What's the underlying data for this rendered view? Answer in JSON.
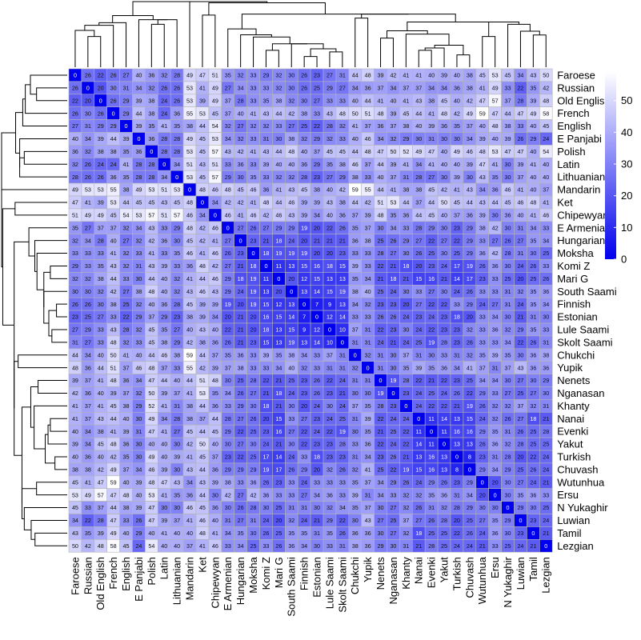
{
  "chart_data": {
    "type": "heatmap",
    "title": "",
    "xlabel": "",
    "ylabel": "",
    "labels": [
      "Faroese",
      "Russian",
      "Old English",
      "French",
      "English",
      "E Panjabi",
      "Polish",
      "Latin",
      "Lithuanian",
      "Mandarin",
      "Ket",
      "Chipewyan",
      "E Armenian",
      "Hungarian",
      "Moksha",
      "Komi Z",
      "Mari G",
      "South Saami",
      "Finnish",
      "Estonian",
      "Lule Saami",
      "Skolt Saami",
      "Chukchi",
      "Yupik",
      "Nenets",
      "Nganasan",
      "Khanty",
      "Nanai",
      "Evenki",
      "Yakut",
      "Turkish",
      "Chuvash",
      "Wutunhua",
      "Ersu",
      "N Yukaghir",
      "Luwian",
      "Tamil",
      "Lezgian"
    ],
    "matrix": [
      [
        0,
        26,
        22,
        26,
        27,
        40,
        36,
        32,
        28,
        49,
        47,
        51,
        35,
        32,
        33,
        29,
        32,
        30,
        26,
        23,
        27,
        31,
        44,
        48,
        39,
        42,
        41,
        41,
        40,
        39,
        40,
        38,
        45,
        53,
        45,
        34,
        43,
        50
      ],
      [
        26,
        0,
        20,
        30,
        31,
        34,
        32,
        26,
        26,
        53,
        41,
        49,
        27,
        34,
        33,
        33,
        32,
        30,
        26,
        25,
        29,
        27,
        34,
        36,
        37,
        34,
        37,
        37,
        34,
        34,
        36,
        38,
        41,
        49,
        33,
        22,
        35,
        42
      ],
      [
        22,
        20,
        0,
        26,
        29,
        39,
        38,
        24,
        26,
        53,
        39,
        49,
        37,
        28,
        33,
        35,
        38,
        32,
        30,
        27,
        33,
        33,
        40,
        44,
        41,
        40,
        41,
        43,
        38,
        45,
        40,
        42,
        47,
        57,
        37,
        28,
        39,
        48
      ],
      [
        26,
        30,
        26,
        0,
        29,
        44,
        38,
        24,
        36,
        55,
        53,
        45,
        37,
        40,
        41,
        43,
        44,
        42,
        38,
        33,
        43,
        48,
        50,
        51,
        48,
        39,
        45,
        44,
        41,
        48,
        42,
        49,
        59,
        47,
        44,
        47,
        49,
        58
      ],
      [
        27,
        31,
        29,
        29,
        0,
        39,
        35,
        41,
        35,
        38,
        44,
        54,
        32,
        27,
        32,
        32,
        33,
        27,
        25,
        22,
        28,
        32,
        41,
        37,
        36,
        37,
        38,
        40,
        39,
        36,
        35,
        37,
        40,
        48,
        38,
        33,
        40,
        45
      ],
      [
        40,
        34,
        39,
        44,
        39,
        0,
        36,
        28,
        28,
        49,
        45,
        53,
        34,
        32,
        33,
        31,
        30,
        38,
        32,
        29,
        32,
        33,
        40,
        46,
        34,
        32,
        29,
        30,
        31,
        30,
        30,
        34,
        39,
        40,
        39,
        26,
        29,
        24
      ],
      [
        36,
        32,
        38,
        38,
        35,
        36,
        0,
        28,
        28,
        53,
        45,
        57,
        43,
        42,
        41,
        43,
        44,
        48,
        40,
        37,
        45,
        45,
        44,
        48,
        47,
        50,
        52,
        49,
        47,
        40,
        49,
        46,
        48,
        53,
        47,
        47,
        40,
        54
      ],
      [
        32,
        26,
        24,
        24,
        41,
        28,
        28,
        0,
        34,
        51,
        43,
        51,
        33,
        36,
        33,
        39,
        40,
        40,
        36,
        29,
        35,
        38,
        46,
        37,
        44,
        39,
        41,
        34,
        41,
        40,
        40,
        39,
        47,
        41,
        30,
        39,
        41,
        40
      ],
      [
        28,
        26,
        26,
        36,
        35,
        28,
        28,
        34,
        0,
        53,
        45,
        57,
        29,
        30,
        35,
        33,
        32,
        32,
        28,
        23,
        27,
        29,
        38,
        33,
        40,
        37,
        31,
        28,
        27,
        30,
        39,
        30,
        43,
        35,
        30,
        37,
        40,
        40
      ],
      [
        49,
        53,
        53,
        55,
        38,
        49,
        53,
        51,
        53,
        0,
        48,
        46,
        48,
        45,
        46,
        36,
        41,
        43,
        45,
        38,
        40,
        42,
        59,
        55,
        44,
        41,
        38,
        38,
        45,
        42,
        41,
        43,
        34,
        36,
        46,
        41,
        40,
        37
      ],
      [
        47,
        41,
        39,
        53,
        44,
        45,
        45,
        43,
        45,
        48,
        0,
        34,
        42,
        42,
        41,
        48,
        44,
        46,
        39,
        39,
        43,
        38,
        44,
        42,
        51,
        53,
        44,
        37,
        44,
        50,
        45,
        44,
        43,
        44,
        45,
        46,
        48,
        41
      ],
      [
        51,
        49,
        49,
        45,
        54,
        53,
        57,
        51,
        57,
        46,
        34,
        0,
        46,
        41,
        46,
        42,
        46,
        43,
        39,
        34,
        40,
        36,
        37,
        39,
        48,
        35,
        36,
        44,
        45,
        40,
        37,
        36,
        39,
        30,
        36,
        40,
        41,
        46
      ],
      [
        35,
        27,
        37,
        37,
        32,
        34,
        43,
        33,
        29,
        48,
        42,
        46,
        0,
        27,
        26,
        27,
        29,
        29,
        19,
        20,
        22,
        26,
        35,
        37,
        30,
        34,
        33,
        28,
        29,
        30,
        23,
        29,
        38,
        42,
        30,
        31,
        34,
        33
      ],
      [
        32,
        34,
        28,
        40,
        27,
        32,
        42,
        36,
        30,
        45,
        42,
        41,
        27,
        0,
        23,
        21,
        18,
        24,
        20,
        21,
        21,
        21,
        36,
        38,
        25,
        26,
        29,
        27,
        22,
        27,
        22,
        29,
        33,
        27,
        26,
        27,
        35,
        34
      ],
      [
        33,
        33,
        33,
        41,
        32,
        33,
        41,
        33,
        35,
        46,
        41,
        46,
        26,
        23,
        0,
        18,
        19,
        19,
        19,
        20,
        20,
        23,
        33,
        33,
        28,
        27,
        30,
        26,
        25,
        30,
        25,
        29,
        36,
        42,
        28,
        31,
        30,
        25
      ],
      [
        29,
        33,
        35,
        43,
        32,
        31,
        43,
        39,
        33,
        36,
        48,
        42,
        27,
        21,
        18,
        0,
        11,
        13,
        15,
        16,
        18,
        15,
        39,
        33,
        22,
        21,
        18,
        20,
        23,
        24,
        17,
        19,
        26,
        36,
        30,
        24,
        26,
        33
      ],
      [
        32,
        32,
        38,
        44,
        33,
        30,
        44,
        40,
        32,
        41,
        44,
        46,
        29,
        18,
        19,
        11,
        0,
        20,
        12,
        15,
        13,
        13,
        35,
        34,
        21,
        18,
        21,
        15,
        16,
        21,
        14,
        17,
        23,
        33,
        25,
        20,
        25,
        26
      ],
      [
        30,
        30,
        32,
        42,
        27,
        38,
        48,
        40,
        32,
        43,
        46,
        43,
        29,
        24,
        19,
        13,
        20,
        0,
        13,
        14,
        15,
        19,
        38,
        40,
        25,
        24,
        30,
        33,
        27,
        30,
        24,
        26,
        33,
        33,
        31,
        32,
        35,
        36
      ],
      [
        26,
        26,
        30,
        38,
        25,
        32,
        40,
        36,
        28,
        45,
        39,
        39,
        19,
        20,
        19,
        15,
        12,
        13,
        0,
        7,
        9,
        13,
        34,
        32,
        23,
        23,
        20,
        27,
        22,
        22,
        33,
        29,
        24,
        27,
        31,
        24,
        35,
        34
      ],
      [
        23,
        25,
        27,
        33,
        22,
        29,
        37,
        29,
        23,
        38,
        39,
        34,
        20,
        21,
        20,
        16,
        15,
        14,
        7,
        0,
        12,
        14,
        33,
        33,
        26,
        26,
        24,
        23,
        24,
        23,
        18,
        20,
        33,
        34,
        30,
        21,
        31,
        30
      ],
      [
        27,
        29,
        33,
        43,
        28,
        32,
        45,
        35,
        27,
        40,
        43,
        40,
        22,
        21,
        20,
        18,
        13,
        15,
        9,
        12,
        0,
        10,
        37,
        31,
        22,
        23,
        30,
        24,
        22,
        23,
        23,
        32,
        33,
        36,
        32,
        29,
        35,
        33
      ],
      [
        31,
        27,
        33,
        48,
        32,
        33,
        45,
        38,
        29,
        42,
        38,
        36,
        26,
        21,
        23,
        15,
        13,
        19,
        13,
        14,
        10,
        0,
        31,
        31,
        24,
        21,
        24,
        25,
        19,
        28,
        23,
        26,
        33,
        33,
        34,
        22,
        26,
        31
      ],
      [
        44,
        34,
        40,
        50,
        41,
        40,
        44,
        46,
        38,
        59,
        44,
        37,
        35,
        36,
        33,
        39,
        35,
        38,
        34,
        33,
        37,
        31,
        0,
        32,
        31,
        30,
        37,
        31,
        30,
        33,
        31,
        32,
        35,
        39,
        35,
        30,
        36,
        38
      ],
      [
        48,
        36,
        44,
        51,
        37,
        46,
        48,
        37,
        33,
        55,
        42,
        39,
        37,
        38,
        33,
        33,
        34,
        40,
        32,
        33,
        31,
        31,
        32,
        0,
        31,
        30,
        35,
        39,
        35,
        36,
        34,
        41,
        37,
        31,
        37,
        43,
        36,
        36
      ],
      [
        39,
        37,
        41,
        48,
        36,
        34,
        47,
        44,
        40,
        44,
        51,
        48,
        30,
        25,
        28,
        22,
        21,
        25,
        23,
        26,
        22,
        24,
        31,
        31,
        0,
        19,
        28,
        22,
        21,
        22,
        23,
        25,
        34,
        34,
        30,
        27,
        30,
        29
      ],
      [
        42,
        36,
        40,
        39,
        37,
        32,
        50,
        39,
        37,
        41,
        53,
        35,
        34,
        26,
        27,
        21,
        18,
        24,
        23,
        26,
        23,
        21,
        30,
        30,
        19,
        0,
        23,
        24,
        25,
        24,
        26,
        22,
        29,
        33,
        27,
        25,
        27,
        30
      ],
      [
        41,
        37,
        41,
        45,
        38,
        29,
        52,
        41,
        31,
        38,
        44,
        36,
        33,
        29,
        30,
        18,
        21,
        30,
        20,
        24,
        30,
        24,
        37,
        35,
        28,
        23,
        0,
        24,
        22,
        22,
        21,
        19,
        26,
        32,
        32,
        37,
        32,
        31
      ],
      [
        41,
        37,
        43,
        44,
        40,
        30,
        49,
        34,
        28,
        38,
        37,
        44,
        28,
        27,
        26,
        20,
        15,
        33,
        27,
        23,
        24,
        25,
        31,
        39,
        22,
        24,
        24,
        0,
        11,
        14,
        13,
        15,
        24,
        32,
        26,
        27,
        18,
        21
      ],
      [
        40,
        34,
        38,
        41,
        39,
        31,
        47,
        41,
        27,
        45,
        44,
        45,
        29,
        22,
        25,
        23,
        16,
        27,
        22,
        24,
        22,
        19,
        30,
        35,
        21,
        25,
        22,
        11,
        0,
        11,
        16,
        16,
        29,
        35,
        31,
        26,
        25,
        28
      ],
      [
        39,
        34,
        45,
        48,
        36,
        30,
        40,
        40,
        30,
        42,
        50,
        40,
        30,
        27,
        30,
        24,
        21,
        30,
        22,
        23,
        23,
        28,
        33,
        36,
        22,
        24,
        22,
        14,
        11,
        0,
        13,
        13,
        26,
        36,
        32,
        28,
        25,
        25
      ],
      [
        40,
        36,
        40,
        42,
        35,
        30,
        49,
        40,
        39,
        41,
        45,
        37,
        23,
        22,
        25,
        17,
        14,
        24,
        33,
        18,
        23,
        23,
        31,
        34,
        23,
        26,
        21,
        13,
        16,
        13,
        0,
        8,
        23,
        31,
        28,
        20,
        22,
        24
      ],
      [
        38,
        38,
        42,
        49,
        37,
        34,
        46,
        39,
        30,
        43,
        44,
        36,
        29,
        29,
        29,
        19,
        17,
        26,
        29,
        20,
        32,
        26,
        32,
        41,
        25,
        22,
        19,
        15,
        16,
        13,
        8,
        0,
        29,
        34,
        29,
        25,
        26,
        24
      ],
      [
        45,
        41,
        47,
        59,
        40,
        39,
        48,
        47,
        43,
        34,
        43,
        39,
        38,
        33,
        36,
        26,
        23,
        33,
        24,
        33,
        33,
        33,
        35,
        37,
        34,
        29,
        26,
        24,
        29,
        26,
        23,
        29,
        0,
        20,
        30,
        27,
        24,
        21
      ],
      [
        53,
        49,
        57,
        47,
        48,
        40,
        53,
        41,
        35,
        36,
        44,
        30,
        42,
        27,
        42,
        36,
        33,
        33,
        27,
        34,
        36,
        33,
        39,
        31,
        34,
        33,
        32,
        32,
        35,
        36,
        31,
        34,
        20,
        0,
        30,
        35,
        36,
        33
      ],
      [
        45,
        33,
        37,
        44,
        38,
        39,
        47,
        30,
        30,
        46,
        45,
        36,
        30,
        26,
        28,
        30,
        25,
        31,
        31,
        30,
        32,
        34,
        35,
        37,
        30,
        27,
        32,
        26,
        31,
        32,
        28,
        29,
        30,
        30,
        0,
        29,
        30,
        25
      ],
      [
        34,
        22,
        28,
        47,
        33,
        26,
        47,
        39,
        37,
        41,
        46,
        40,
        31,
        27,
        31,
        24,
        20,
        32,
        24,
        21,
        29,
        22,
        30,
        43,
        27,
        25,
        37,
        27,
        26,
        28,
        20,
        25,
        27,
        35,
        29,
        0,
        23,
        24
      ],
      [
        43,
        35,
        39,
        49,
        40,
        29,
        40,
        41,
        40,
        40,
        48,
        41,
        34,
        35,
        30,
        26,
        25,
        35,
        35,
        31,
        35,
        26,
        36,
        36,
        30,
        27,
        32,
        18,
        25,
        25,
        22,
        26,
        24,
        36,
        30,
        23,
        0,
        21
      ],
      [
        50,
        42,
        48,
        58,
        45,
        24,
        54,
        40,
        40,
        37,
        41,
        46,
        33,
        34,
        25,
        33,
        26,
        36,
        34,
        30,
        33,
        31,
        38,
        36,
        29,
        30,
        31,
        21,
        28,
        25,
        24,
        24,
        21,
        33,
        25,
        24,
        21,
        0
      ]
    ],
    "colorbar": {
      "ticks": [
        0,
        10,
        20,
        30,
        40,
        50
      ],
      "min": 0,
      "max": 59
    },
    "colors": {
      "low": "#0000ee",
      "high": "#ffffff",
      "grid": "#b3b3b3",
      "tree": "#000000"
    },
    "legend": "right",
    "dendrogram": "rows-and-columns"
  }
}
